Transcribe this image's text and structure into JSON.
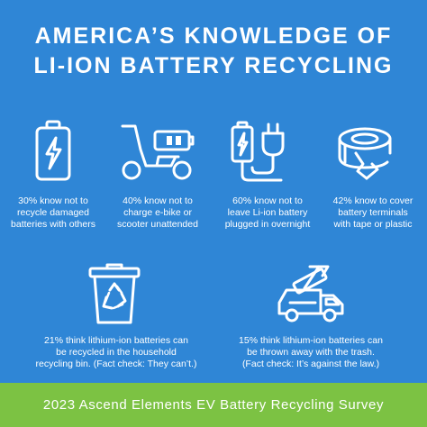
{
  "title": {
    "line1": "AMERICA’S KNOWLEDGE OF",
    "line2": "LI-ION BATTERY RECYCLING"
  },
  "stats": [
    {
      "icon": "battery-icon",
      "lines": [
        "30% know not to",
        "recycle damaged",
        "batteries with others"
      ]
    },
    {
      "icon": "e-scooter-icon",
      "lines": [
        "40% know not to",
        "charge e-bike or",
        "scooter unattended"
      ]
    },
    {
      "icon": "battery-plug-icon",
      "lines": [
        "60% know not to",
        "leave Li-ion battery",
        "plugged in overnight"
      ]
    },
    {
      "icon": "tape-roll-icon",
      "lines": [
        "42% know to cover",
        "battery terminals",
        "with tape or plastic"
      ]
    },
    {
      "icon": "recycling-bin-icon",
      "lines": [
        "21% think lithium-ion batteries can",
        "be recycled in the household",
        "recycling bin. (Fact check: They can’t.)"
      ]
    },
    {
      "icon": "garbage-truck-icon",
      "lines": [
        "15% think lithium-ion batteries can",
        "be thrown away with the trash.",
        "(Fact check: It’s against the law.)"
      ]
    }
  ],
  "footer": {
    "text": "2023 Ascend Elements EV Battery Recycling Survey"
  },
  "colors": {
    "background": "#2f86d6",
    "footer": "#7cc243",
    "foreground": "#ffffff"
  }
}
